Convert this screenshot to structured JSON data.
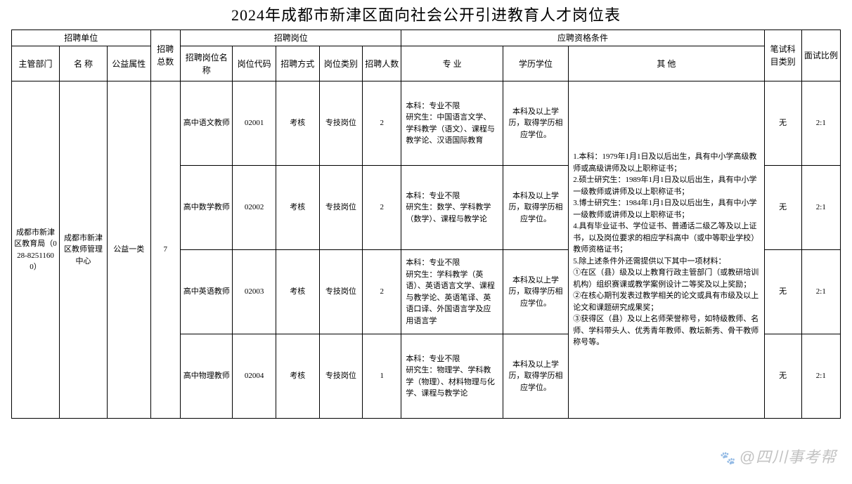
{
  "title": "2024年成都市新津区面向社会公开引进教育人才岗位表",
  "groupHeaders": {
    "unit": "招聘单位",
    "position": "招聘岗位",
    "qualification": "应聘资格条件"
  },
  "columns": {
    "dept": "主管部门",
    "name": "名 称",
    "welfare": "公益属性",
    "total": "招聘总数",
    "posName": "招聘岗位名称",
    "posCode": "岗位代码",
    "method": "招聘方式",
    "posType": "岗位类别",
    "count": "招聘人数",
    "major": "专 业",
    "degree": "学历学位",
    "other": "其 他",
    "examType": "笔试科目类别",
    "ratio": "面试比例"
  },
  "org": {
    "dept": "成都市新津区教育局（028-82511600）",
    "unitName": "成都市新津区教师管理中心",
    "welfare": "公益一类",
    "total": "7"
  },
  "rows": [
    {
      "posName": "高中语文教师",
      "posCode": "02001",
      "method": "考核",
      "posType": "专技岗位",
      "count": "2",
      "major": "本科：专业不限\n研究生：中国语言文学、学科教学（语文）、课程与教学论、汉语国际教育",
      "degree": "本科及以上学历，取得学历相应学位。",
      "examType": "无",
      "ratio": "2:1"
    },
    {
      "posName": "高中数学教师",
      "posCode": "02002",
      "method": "考核",
      "posType": "专技岗位",
      "count": "2",
      "major": "本科：专业不限\n研究生：数学、学科教学（数学）、课程与教学论",
      "degree": "本科及以上学历，取得学历相应学位。",
      "examType": "无",
      "ratio": "2:1"
    },
    {
      "posName": "高中英语教师",
      "posCode": "02003",
      "method": "考核",
      "posType": "专技岗位",
      "count": "2",
      "major": "本科：专业不限\n研究生：学科教学（英语）、英语语言文学、课程与教学论、英语笔译、英语口译、外国语言学及应用语言学",
      "degree": "本科及以上学历，取得学历相应学位。",
      "examType": "无",
      "ratio": "2:1"
    },
    {
      "posName": "高中物理教师",
      "posCode": "02004",
      "method": "考核",
      "posType": "专技岗位",
      "count": "1",
      "major": "本科：专业不限\n研究生：物理学、学科教学（物理）、材料物理与化学、课程与教学论",
      "degree": "本科及以上学历，取得学历相应学位。",
      "examType": "无",
      "ratio": "2:1"
    }
  ],
  "other": "1.本科：1979年1月1日及以后出生，具有中小学高级教师或高级讲师及以上职称证书；\n2.硕士研究生：1989年1月1日及以后出生，具有中小学一级教师或讲师及以上职称证书；\n3.博士研究生：1984年1月1日及以后出生，具有中小学一级教师或讲师及以上职称证书；\n4.具有毕业证书、学位证书、普通话二级乙等及以上证书，以及岗位要求的相应学科高中（或中等职业学校）教师资格证书；\n5.除上述条件外还需提供以下其中一项材料：\n①在区（县）级及以上教育行政主管部门（或教研培训机构）组织赛课或教学案例设计二等奖及以上奖励；\n②在核心期刊发表过教学相关的论文或具有市级及以上论文和课题研究成果奖；\n③获得区（县）及以上名师荣誉称号，如特级教师、名师、学科带头人、优秀青年教师、教坛新秀、骨干教师称号等。",
  "watermark": "@四川事考帮",
  "colStyle": {
    "widths": {
      "dept": 64,
      "name": 64,
      "welfare": 58,
      "total": 40,
      "posName": 70,
      "posCode": 58,
      "method": 58,
      "posType": 58,
      "count": 52,
      "major": 136,
      "degree": 88,
      "other": 262,
      "examType": 50,
      "ratio": 52
    },
    "borderColor": "#000000",
    "background": "#ffffff",
    "titleFontSize": 22,
    "headerFontSize": 12,
    "cellFontSize": 11
  }
}
